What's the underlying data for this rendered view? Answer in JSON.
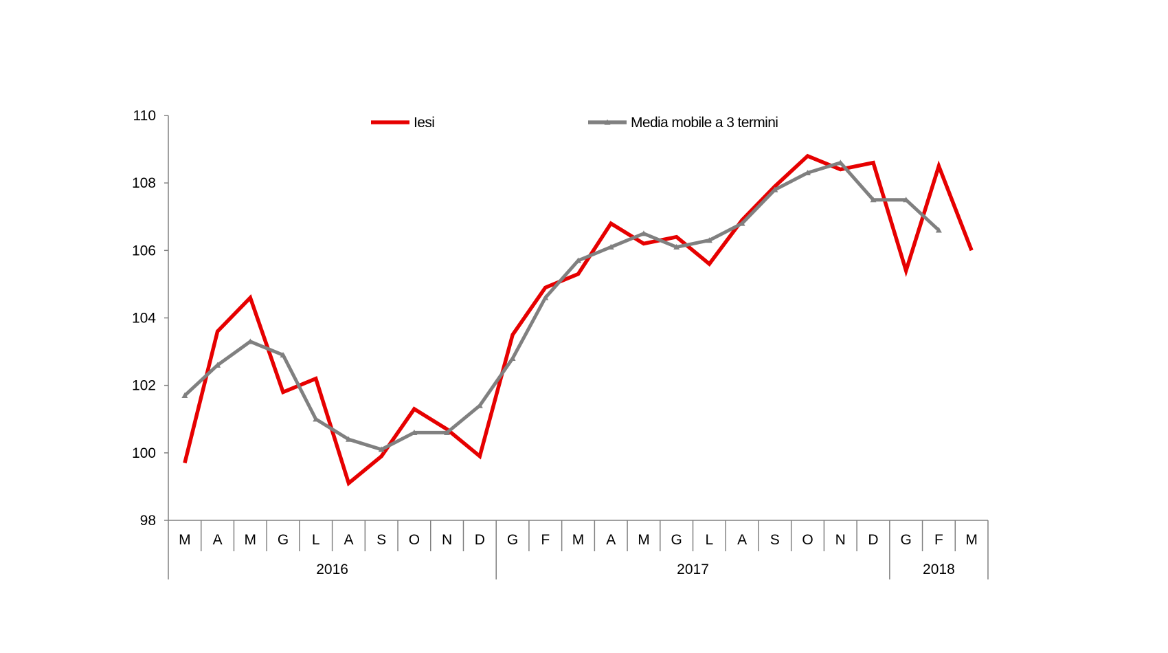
{
  "chart_data": {
    "type": "line",
    "title": "",
    "xlabel": "",
    "ylabel": "",
    "ylim": [
      98,
      110
    ],
    "yticks": [
      "98",
      "100",
      "102",
      "104",
      "106",
      "108",
      "110"
    ],
    "grid": false,
    "legend_position": "top",
    "categories": [
      "M",
      "A",
      "M",
      "G",
      "L",
      "A",
      "S",
      "O",
      "N",
      "D",
      "G",
      "F",
      "M",
      "A",
      "M",
      "G",
      "L",
      "A",
      "S",
      "O",
      "N",
      "D",
      "G",
      "F",
      "M"
    ],
    "year_groups": [
      {
        "label": "2016",
        "span": 10
      },
      {
        "label": "2017",
        "span": 12
      },
      {
        "label": "2018",
        "span": 3
      }
    ],
    "series": [
      {
        "name": "Iesi",
        "color": "#e60000",
        "marker": "none",
        "values": [
          99.7,
          103.6,
          104.6,
          101.8,
          102.2,
          99.1,
          99.9,
          101.3,
          100.7,
          99.9,
          103.5,
          104.9,
          105.3,
          106.8,
          106.2,
          106.4,
          105.6,
          106.9,
          107.9,
          108.8,
          108.4,
          108.6,
          105.4,
          108.5,
          106.0
        ]
      },
      {
        "name": "Media mobile a 3 termini",
        "color": "#808080",
        "marker": "triangle",
        "values": [
          101.7,
          102.6,
          103.3,
          102.9,
          101.0,
          100.4,
          100.1,
          100.6,
          100.6,
          101.4,
          102.8,
          104.6,
          105.7,
          106.1,
          106.5,
          106.1,
          106.3,
          106.8,
          107.8,
          108.3,
          108.6,
          107.5,
          107.5,
          106.6,
          null
        ]
      }
    ]
  }
}
